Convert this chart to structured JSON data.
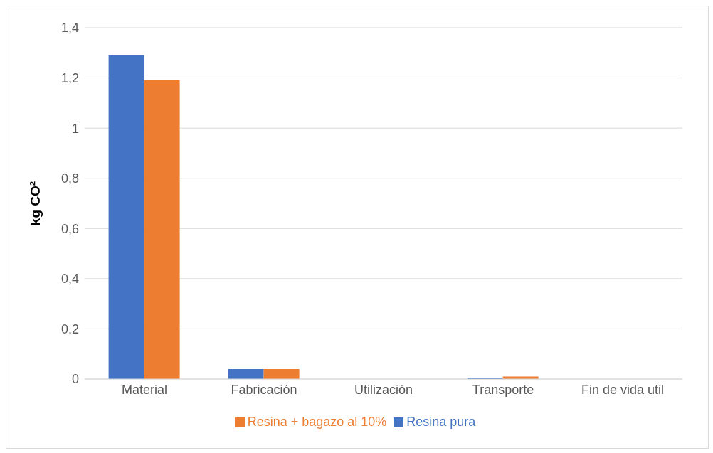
{
  "chart_data": {
    "type": "bar",
    "ylabel": "kg CO²",
    "categories": [
      "Material",
      "Fabricación",
      "Utilización",
      "Transporte",
      "Fin de vida util"
    ],
    "series": [
      {
        "name": "Resina pura",
        "color": "#4472c4",
        "values": [
          1.29,
          0.04,
          0,
          0.005,
          0
        ]
      },
      {
        "name": "Resina + bagazo al 10%",
        "color": "#ed7d31",
        "values": [
          1.19,
          0.04,
          0,
          0.01,
          0
        ]
      }
    ],
    "ylim": [
      0,
      1.4
    ],
    "yticks": [
      {
        "value": 0,
        "label": "0"
      },
      {
        "value": 0.2,
        "label": "0,2"
      },
      {
        "value": 0.4,
        "label": "0,4"
      },
      {
        "value": 0.6,
        "label": "0,6"
      },
      {
        "value": 0.8,
        "label": "0,8"
      },
      {
        "value": 1,
        "label": "1"
      },
      {
        "value": 1.2,
        "label": "1,2"
      },
      {
        "value": 1.4,
        "label": "1,4"
      }
    ],
    "grid": "y",
    "legend": "bottom"
  }
}
